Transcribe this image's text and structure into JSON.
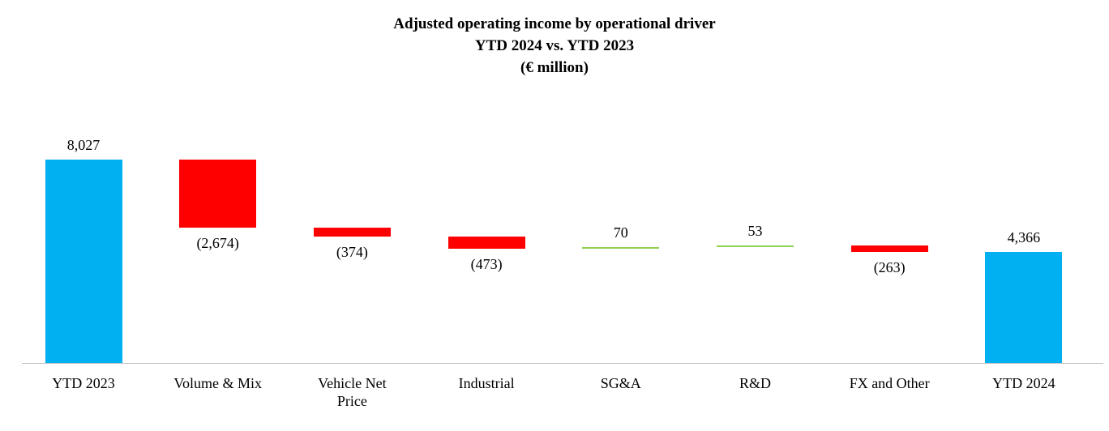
{
  "chart_data": {
    "type": "bar",
    "subtype": "waterfall",
    "title": "Adjusted operating income by operational driver",
    "subtitle": "YTD 2024 vs. YTD 2023",
    "unit": "(€ million)",
    "categories": [
      "YTD 2023",
      "Volume & Mix",
      "Vehicle Net Price",
      "Industrial",
      "SG&A",
      "R&D",
      "FX and Other",
      "YTD 2024"
    ],
    "categories_display": [
      "YTD 2023",
      "Volume & Mix",
      "Vehicle Net\nPrice",
      "Industrial",
      "SG&A",
      "R&D",
      "FX and Other",
      "YTD 2024"
    ],
    "values": [
      8027,
      -2674,
      -374,
      -473,
      70,
      53,
      -263,
      4366
    ],
    "labels": [
      "8,027",
      "(2,674)",
      "(374)",
      "(473)",
      "70",
      "53",
      "(263)",
      "4,366"
    ],
    "bar_types": [
      "total",
      "decrease",
      "decrease",
      "decrease",
      "increase",
      "increase",
      "decrease",
      "total"
    ],
    "running_totals": [
      8027,
      5353,
      4979,
      4506,
      4576,
      4629,
      4366,
      4366
    ],
    "colors": {
      "total": "#00b0f0",
      "decrease": "#fe0000",
      "increase": "#92d050",
      "axis": "#bfbfbf"
    },
    "ylim": [
      0,
      8027
    ],
    "grid": false,
    "legend": "none"
  }
}
